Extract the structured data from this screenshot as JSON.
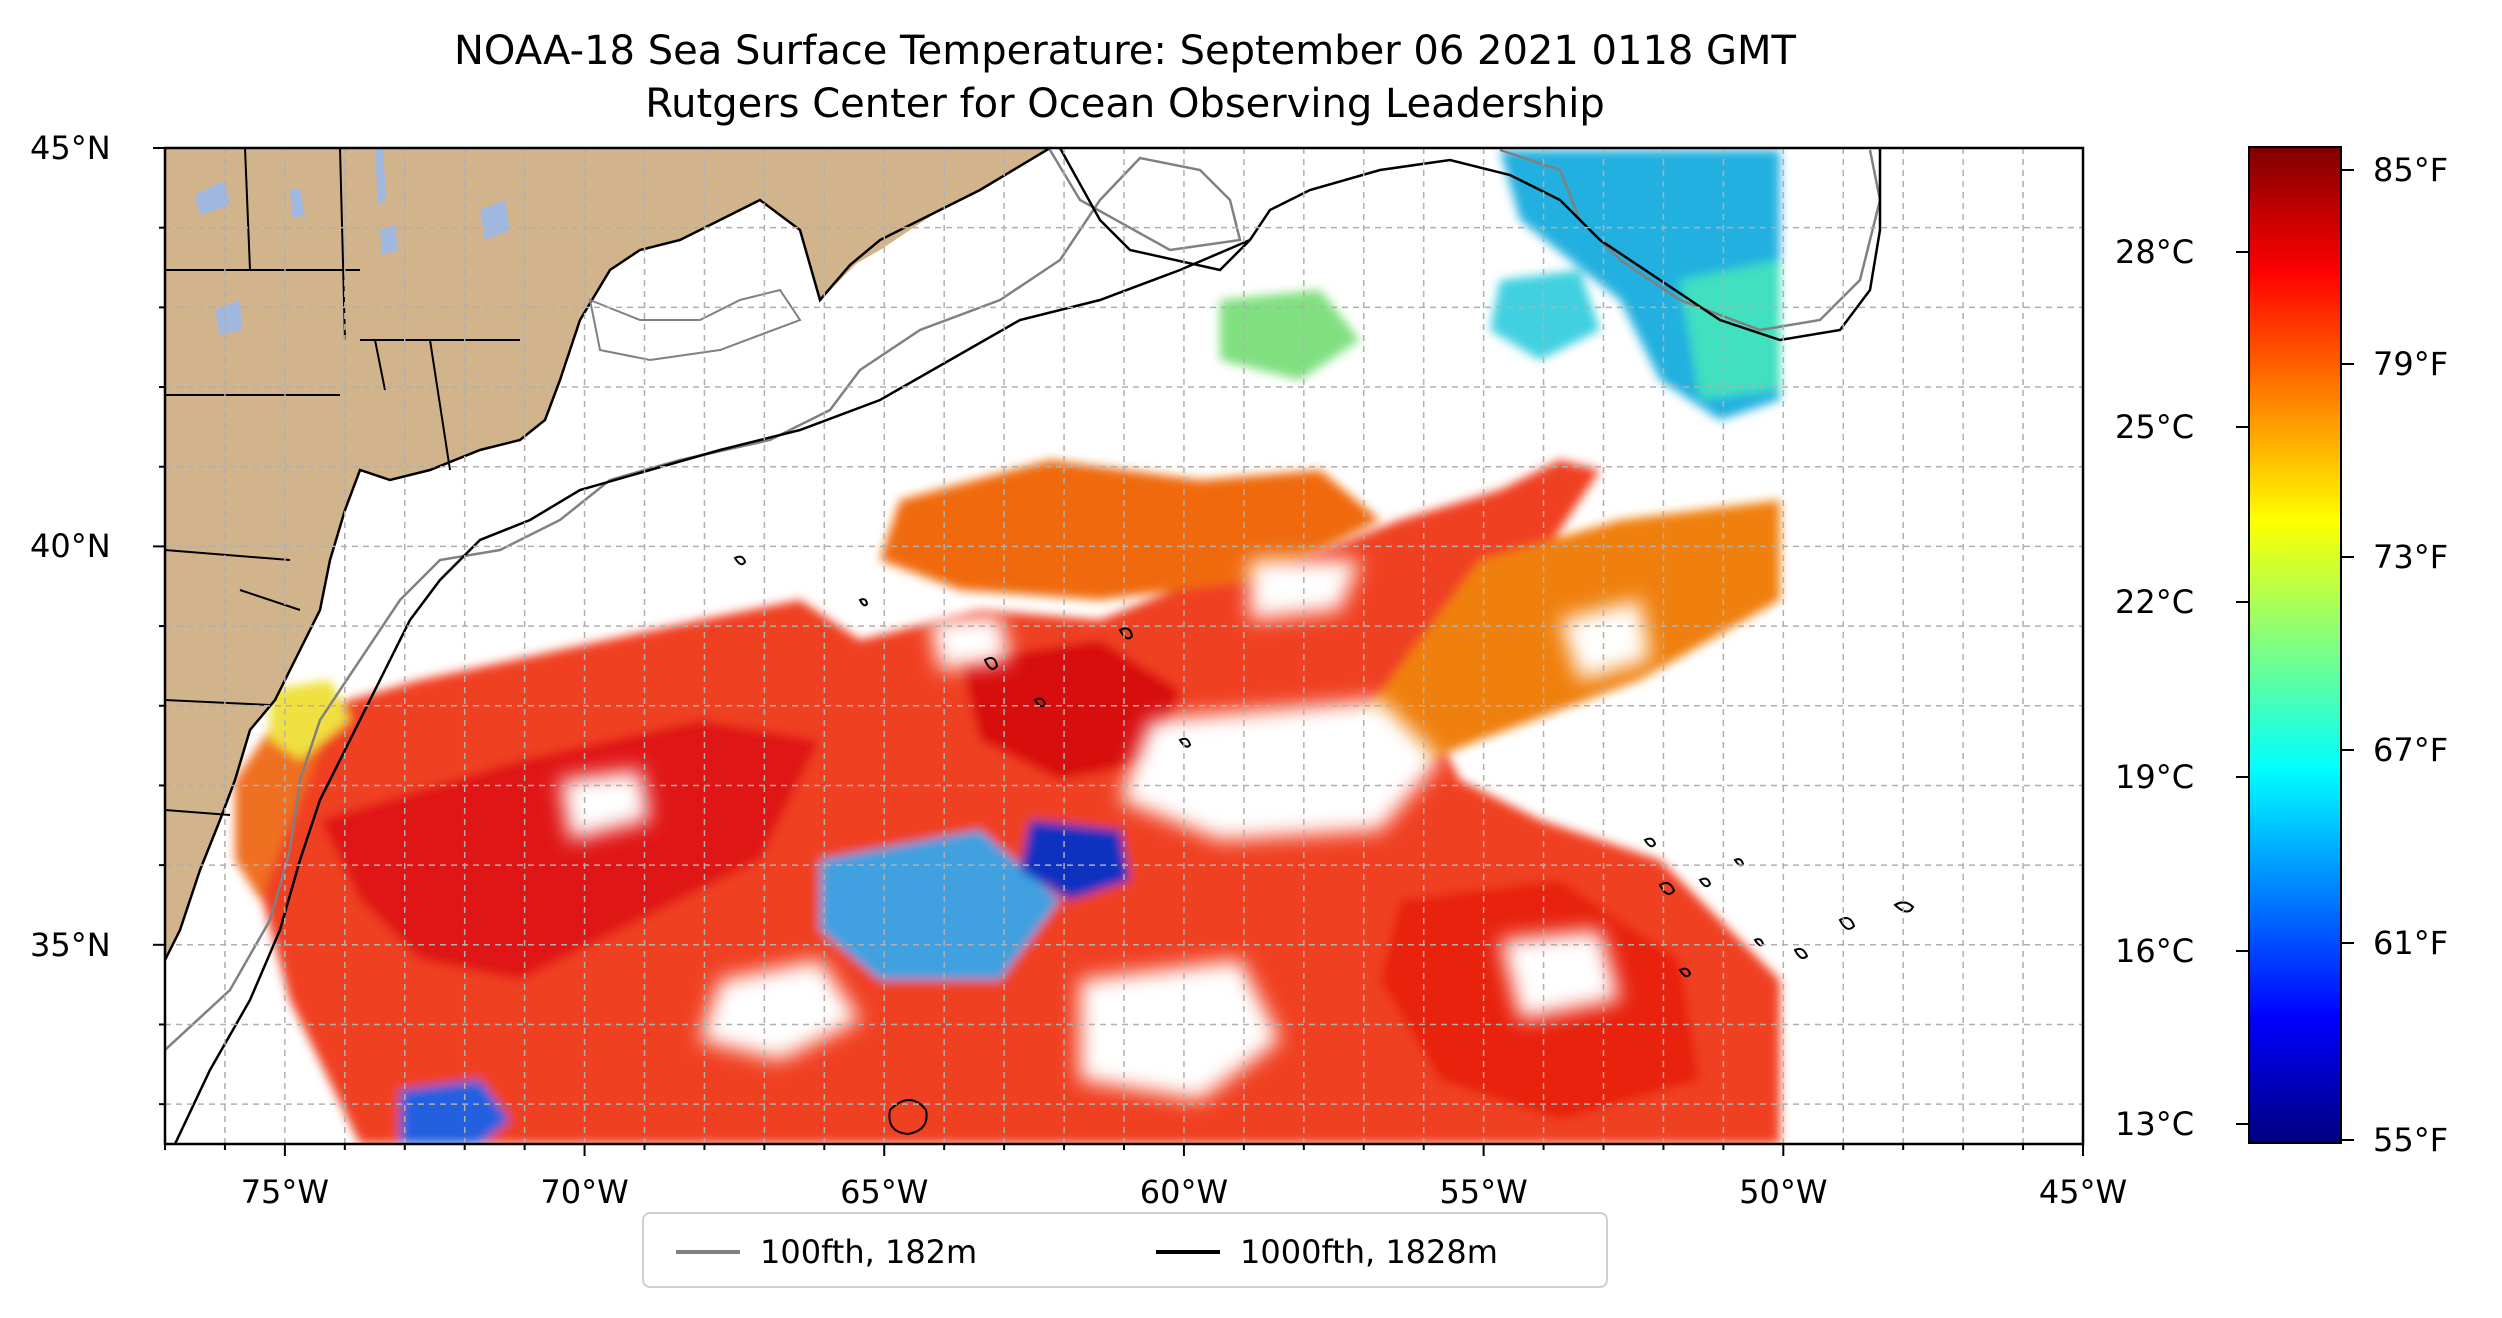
{
  "title": {
    "line1": "NOAA-18 Sea Surface Temperature: September 06 2021 0118 GMT",
    "line2": "Rutgers Center for Ocean Observing Leadership"
  },
  "map": {
    "lon_range": [
      -77,
      -45
    ],
    "lat_range": [
      32.5,
      45
    ],
    "lon_ticks": [
      {
        "value": -75,
        "label": "75°W"
      },
      {
        "value": -70,
        "label": "70°W"
      },
      {
        "value": -65,
        "label": "65°W"
      },
      {
        "value": -60,
        "label": "60°W"
      },
      {
        "value": -55,
        "label": "55°W"
      },
      {
        "value": -50,
        "label": "50°W"
      },
      {
        "value": -45,
        "label": "45°W"
      }
    ],
    "lat_ticks": [
      {
        "value": 45,
        "label": "45°N"
      },
      {
        "value": 40,
        "label": "40°N"
      },
      {
        "value": 35,
        "label": "35°N"
      }
    ],
    "grid": "on",
    "colors": {
      "land": "#d2b48c",
      "lake": "#a0b8e0",
      "isobath_100": "#808080",
      "isobath_1000": "#000000",
      "grid": "#b0b0b0"
    }
  },
  "colorbar": {
    "celsius_labels": [
      "28°C",
      "25°C",
      "22°C",
      "19°C",
      "16°C",
      "13°C"
    ],
    "fahrenheit_labels": [
      "85°F",
      "79°F",
      "73°F",
      "67°F",
      "61°F",
      "55°F"
    ],
    "colormap": "jet",
    "gradient_colors": [
      "#800000",
      "#ff0000",
      "#ff8000",
      "#ffff00",
      "#80ff80",
      "#00ffff",
      "#0080ff",
      "#0000ff",
      "#000080"
    ]
  },
  "legend": {
    "placement": "bottom-center",
    "items": [
      {
        "label": "100fth, 182m",
        "color": "#808080"
      },
      {
        "label": "1000fth, 1828m",
        "color": "#000000"
      }
    ]
  }
}
